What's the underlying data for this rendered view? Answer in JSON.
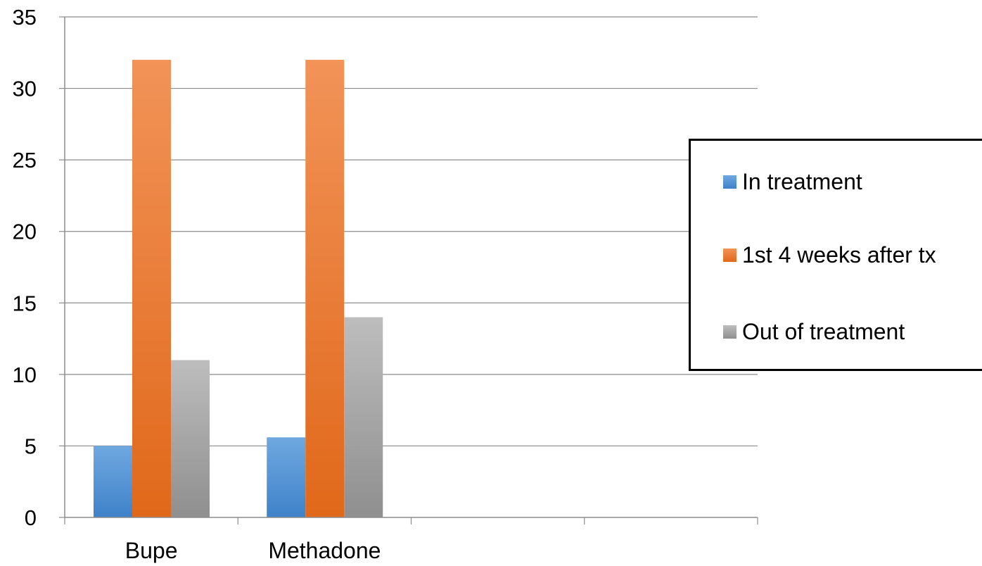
{
  "chart_data": {
    "type": "bar",
    "title": "",
    "xlabel": "",
    "ylabel": "",
    "categories": [
      "Bupe",
      "Methadone",
      "",
      ""
    ],
    "series": [
      {
        "name": "In treatment",
        "values": [
          5,
          5.6,
          null,
          null
        ],
        "color": "#4a8bd0"
      },
      {
        "name": "1st 4 weeks after tx",
        "values": [
          32,
          32,
          null,
          null
        ],
        "color": "#f0772a"
      },
      {
        "name": "Out of treatment",
        "values": [
          11,
          14,
          null,
          null
        ],
        "color": "#a6a6a6"
      }
    ],
    "ylim": [
      0,
      35
    ],
    "yticks": [
      0,
      5,
      10,
      15,
      20,
      25,
      30,
      35
    ],
    "grid": true,
    "legend_position": "right"
  }
}
